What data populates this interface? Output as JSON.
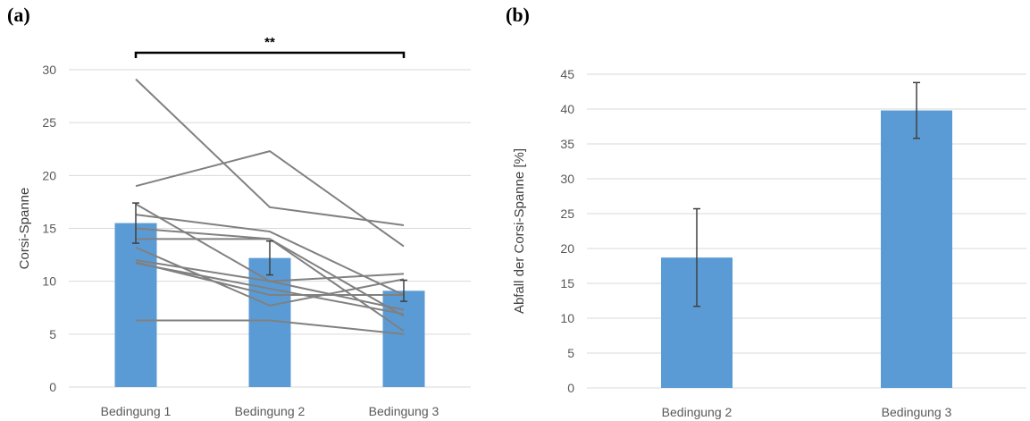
{
  "panels": {
    "a_label": "(a)",
    "b_label": "(b)"
  },
  "chart_data": [
    {
      "type": "bar",
      "panel": "(a)",
      "categories": [
        "Bedingung 1",
        "Bedingung 2",
        "Bedingung 3"
      ],
      "values": [
        15.5,
        12.2,
        9.1
      ],
      "error": [
        1.9,
        1.6,
        1.0
      ],
      "ylabel": "Corsi-Spanne",
      "ylim": [
        0,
        30
      ],
      "yticks": [
        0,
        5,
        10,
        15,
        20,
        25,
        30
      ],
      "grid": true,
      "color": "#5b9bd5",
      "individual_lines": [
        [
          29.1,
          17.0,
          15.3
        ],
        [
          19.0,
          22.3,
          13.3
        ],
        [
          17.3,
          10.0,
          10.7
        ],
        [
          16.3,
          14.7,
          8.7
        ],
        [
          15.0,
          14.0,
          6.7
        ],
        [
          14.0,
          14.0,
          5.3
        ],
        [
          13.2,
          7.7,
          10.2
        ],
        [
          12.0,
          10.0,
          7.3
        ],
        [
          11.8,
          8.7,
          8.7
        ],
        [
          11.7,
          9.3,
          6.9
        ],
        [
          6.3,
          6.3,
          5.0
        ]
      ],
      "significance": {
        "from": "Bedingung 1",
        "to": "Bedingung 3",
        "label": "**"
      }
    },
    {
      "type": "bar",
      "panel": "(b)",
      "categories": [
        "Bedingung 2",
        "Bedingung 3"
      ],
      "values": [
        18.7,
        39.8
      ],
      "error": [
        7.0,
        4.0
      ],
      "ylabel": "Abfall der Corsi-Spanne  [%]",
      "ylim": [
        0,
        45
      ],
      "yticks": [
        0,
        5,
        10,
        15,
        20,
        25,
        30,
        35,
        40,
        45
      ],
      "grid": true,
      "color": "#5b9bd5"
    }
  ]
}
